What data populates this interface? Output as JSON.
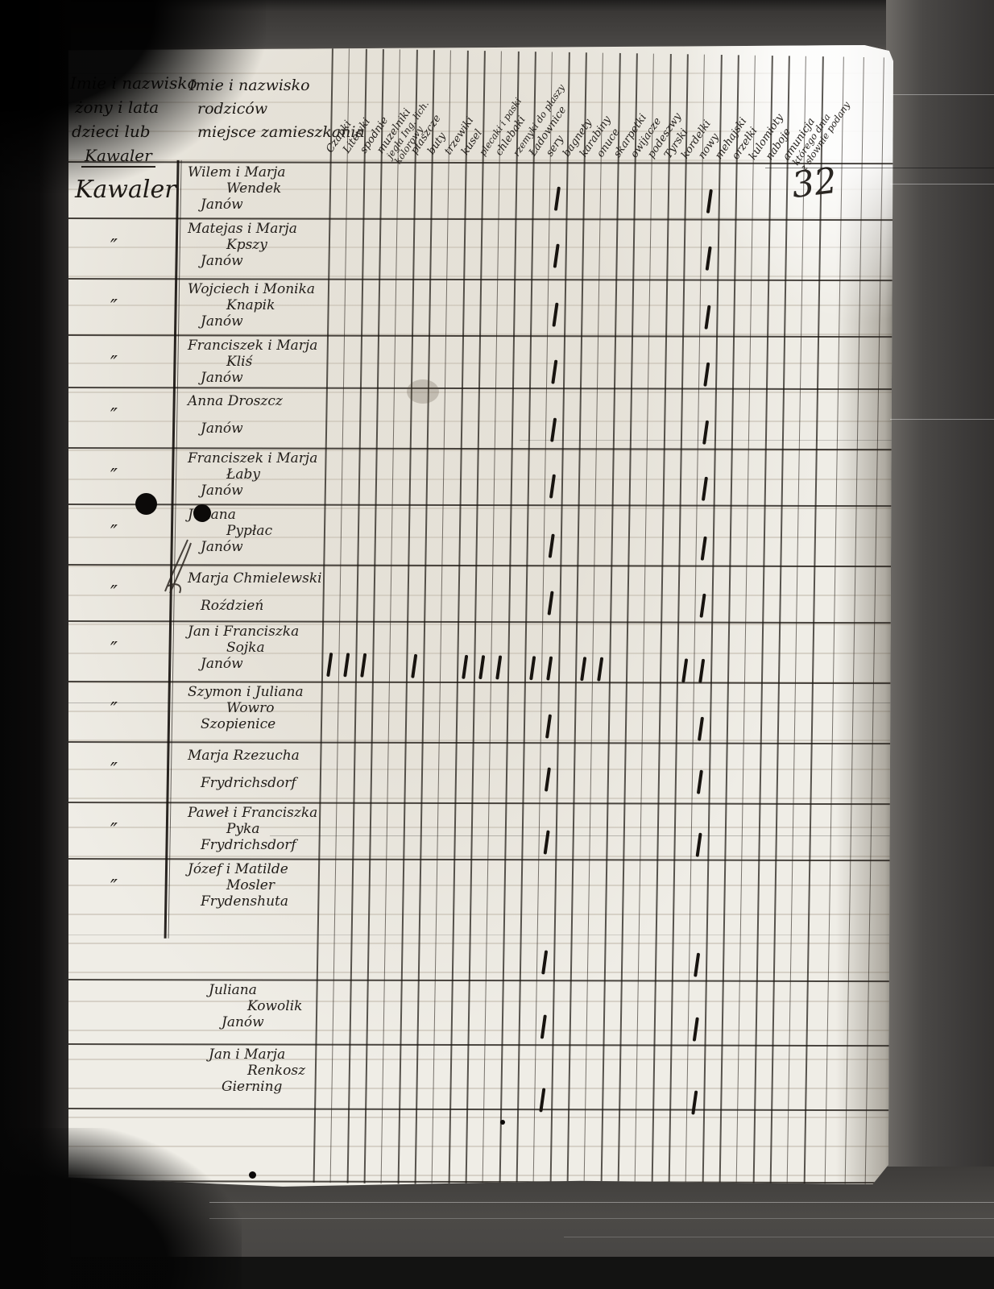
{
  "document": {
    "kind": "handwritten-register-page",
    "page_number": "32",
    "ditto_symbol": "″"
  },
  "header": {
    "left_column_lines": [
      "Imie i nazwisko",
      "żony i lata",
      "dzieci lub",
      "Kawaler"
    ],
    "parents_column_lines": [
      "Imie i nazwisko",
      "rodziców",
      "miejsce zamieszkania"
    ],
    "item_columns": [
      "Czapki",
      "Litewki",
      "spodnie",
      "muzelniki",
      "jegła Ing. lich.\nkolorowy",
      "płaszcze",
      "buty",
      "trzewiki",
      "kusel",
      "plecaki i paski",
      "chlebaki",
      "rzemyki do płaszy",
      "Ładownice",
      "sery",
      "bagnety",
      "karabiny",
      "onuce",
      "skarpetki",
      "owijacze",
      "podeszwy",
      "Tyrski",
      "kordelki",
      "nowy",
      "mehajski",
      "orzełki",
      "kulomioty",
      "naboje",
      "amunicja",
      "którego dnia\nz słownie podany"
    ]
  },
  "rows": [
    {
      "status": "Kawaler",
      "line1": "Wilem i Marja",
      "line2": "Wendek",
      "line3": "Janów",
      "marks": [
        13,
        22
      ]
    },
    {
      "status": "″",
      "line1": "Matejas i Marja",
      "line2": "Kpszy",
      "line3": "Janów",
      "marks": [
        13,
        22
      ]
    },
    {
      "status": "″",
      "line1": "Wojciech i Monika",
      "line2": "Knapik",
      "line3": "Janów",
      "marks": [
        13,
        22
      ]
    },
    {
      "status": "″",
      "line1": "Franciszek i Marja",
      "line2": "Kliś",
      "line3": "Janów",
      "marks": [
        13,
        22
      ]
    },
    {
      "status": "″",
      "line1": "Anna Droszcz",
      "line2": "",
      "line3": "Janów",
      "marks": [
        13,
        22
      ]
    },
    {
      "status": "″",
      "line1": "Franciszek i Marja",
      "line2": "Łaby",
      "line3": "Janów",
      "marks": [
        13,
        22
      ]
    },
    {
      "status": "″",
      "line1": "Juliana",
      "line2": "Pypłac",
      "line3": "Janów",
      "marks": [
        13,
        22
      ]
    },
    {
      "status": "″",
      "line1": "Marja Chmielewski",
      "line2": "",
      "line3": "Roździeń",
      "marks": [
        13,
        22
      ]
    },
    {
      "status": "″",
      "line1": "Jan i Franciszka",
      "line2": "Sojka",
      "line3": "Janów",
      "marks": [
        0,
        1,
        2,
        5,
        8,
        9,
        10,
        12,
        13,
        15,
        16,
        21,
        22
      ]
    },
    {
      "status": "″",
      "line1": "Szymon i Juliana",
      "line2": "Wowro",
      "line3": "Szopienice",
      "marks": [
        13,
        22
      ]
    },
    {
      "status": "″",
      "line1": "Marja Rzezucha",
      "line2": "",
      "line3": "Frydrichsdorf",
      "marks": [
        13,
        22
      ]
    },
    {
      "status": "″",
      "line1": "Paweł i Franciszka",
      "line2": "Pyka",
      "line3": "Frydrichsdorf",
      "marks": [
        13,
        22
      ]
    },
    {
      "status": "″",
      "line1": "Józef i Matilde",
      "line2": "Mosler",
      "line3": "Frydenshuta",
      "marks": [
        13,
        22
      ]
    },
    {
      "status": "",
      "line1": "Juliana",
      "line2": "Kowolik",
      "line3": "Janów",
      "marks": [
        13,
        22
      ]
    },
    {
      "status": "",
      "line1": "Jan i Marja",
      "line2": "Renkosz",
      "line3": "Gierning",
      "marks": [
        13,
        22
      ]
    }
  ]
}
